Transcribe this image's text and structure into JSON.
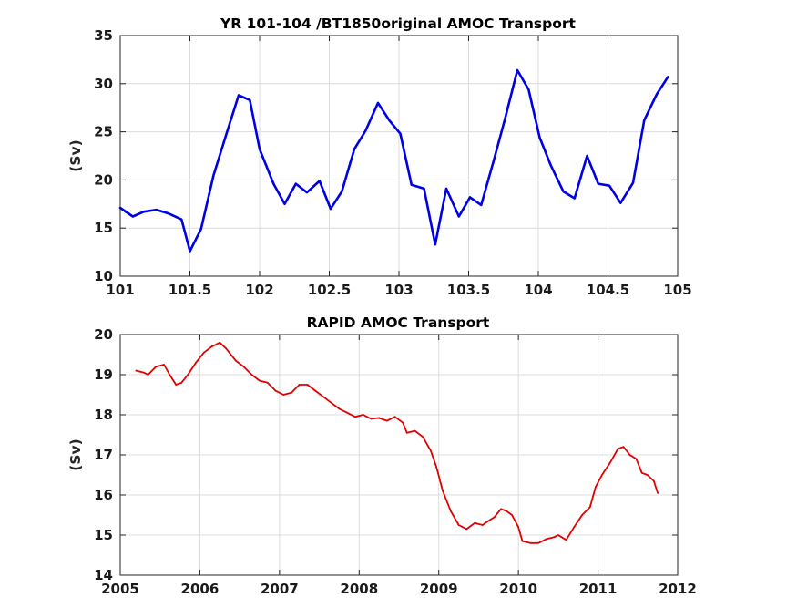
{
  "chart_data": [
    {
      "type": "line",
      "title": "YR 101-104 /BT1850original AMOC Transport",
      "xlabel": "",
      "ylabel": "(Sv)",
      "xlim": [
        101,
        105
      ],
      "ylim": [
        10,
        35
      ],
      "xticks": [
        "101",
        "101.5",
        "102",
        "102.5",
        "103",
        "103.5",
        "104",
        "104.5",
        "105"
      ],
      "yticks": [
        "10",
        "15",
        "20",
        "25",
        "30",
        "35"
      ],
      "grid": true,
      "color": "#0000e6",
      "series": [
        {
          "x": [
            101.0,
            101.09,
            101.17,
            101.26,
            101.35,
            101.44,
            101.5,
            101.58,
            101.67,
            101.76,
            101.85,
            101.93,
            102.0,
            102.1,
            102.18,
            102.26,
            102.34,
            102.43,
            102.51,
            102.59,
            102.68,
            102.76,
            102.85,
            102.93,
            103.01,
            103.09,
            103.18,
            103.26,
            103.34,
            103.43,
            103.51,
            103.59,
            103.68,
            103.76,
            103.85,
            103.93,
            104.01,
            104.09,
            104.18,
            104.26,
            104.35,
            104.43,
            104.51,
            104.59,
            104.68,
            104.76,
            104.85,
            104.93
          ],
          "values": [
            17.1,
            16.2,
            16.7,
            16.9,
            16.5,
            15.9,
            12.6,
            14.9,
            20.5,
            24.7,
            28.8,
            28.3,
            23.2,
            19.6,
            17.5,
            19.6,
            18.7,
            19.9,
            17.0,
            18.8,
            23.2,
            25.1,
            28.0,
            26.2,
            24.8,
            19.5,
            19.1,
            13.3,
            19.1,
            16.2,
            18.2,
            17.4,
            22.0,
            26.3,
            31.4,
            29.4,
            24.4,
            21.5,
            18.8,
            18.1,
            22.5,
            19.6,
            19.4,
            17.6,
            19.7,
            26.2,
            28.9,
            30.7
          ]
        }
      ]
    },
    {
      "type": "line",
      "title": "RAPID AMOC Transport",
      "xlabel": "",
      "ylabel": "(Sv)",
      "xlim": [
        2005,
        2012
      ],
      "ylim": [
        14,
        20
      ],
      "xticks": [
        "2005",
        "2006",
        "2007",
        "2008",
        "2009",
        "2010",
        "2011",
        "2012"
      ],
      "yticks": [
        "14",
        "15",
        "16",
        "17",
        "18",
        "19",
        "20"
      ],
      "grid": true,
      "color": "#e00000",
      "series": [
        {
          "x": [
            2005.2,
            2005.3,
            2005.35,
            2005.45,
            2005.55,
            2005.62,
            2005.7,
            2005.77,
            2005.85,
            2005.95,
            2006.05,
            2006.15,
            2006.25,
            2006.33,
            2006.45,
            2006.55,
            2006.65,
            2006.75,
            2006.85,
            2006.95,
            2007.05,
            2007.15,
            2007.25,
            2007.35,
            2007.45,
            2007.55,
            2007.65,
            2007.75,
            2007.85,
            2007.95,
            2008.05,
            2008.15,
            2008.25,
            2008.35,
            2008.45,
            2008.55,
            2008.6,
            2008.7,
            2008.8,
            2008.9,
            2008.97,
            2009.05,
            2009.15,
            2009.25,
            2009.35,
            2009.45,
            2009.55,
            2009.62,
            2009.7,
            2009.78,
            2009.85,
            2009.92,
            2010.0,
            2010.05,
            2010.15,
            2010.25,
            2010.35,
            2010.45,
            2010.5,
            2010.6,
            2010.7,
            2010.8,
            2010.9,
            2010.97,
            2011.05,
            2011.15,
            2011.25,
            2011.32,
            2011.4,
            2011.48,
            2011.55,
            2011.62,
            2011.7,
            2011.75
          ],
          "values": [
            19.1,
            19.05,
            19.0,
            19.2,
            19.25,
            19.0,
            18.75,
            18.8,
            19.0,
            19.3,
            19.55,
            19.7,
            19.8,
            19.65,
            19.35,
            19.2,
            19.0,
            18.85,
            18.8,
            18.6,
            18.5,
            18.55,
            18.75,
            18.75,
            18.6,
            18.45,
            18.3,
            18.15,
            18.05,
            17.95,
            18.0,
            17.9,
            17.92,
            17.85,
            17.95,
            17.8,
            17.55,
            17.6,
            17.45,
            17.1,
            16.7,
            16.1,
            15.6,
            15.25,
            15.15,
            15.3,
            15.25,
            15.35,
            15.45,
            15.65,
            15.6,
            15.5,
            15.2,
            14.85,
            14.8,
            14.8,
            14.9,
            14.95,
            15.0,
            14.88,
            15.2,
            15.5,
            15.7,
            16.2,
            16.5,
            16.8,
            17.15,
            17.2,
            17.0,
            16.9,
            16.55,
            16.5,
            16.35,
            16.05
          ]
        }
      ]
    }
  ]
}
